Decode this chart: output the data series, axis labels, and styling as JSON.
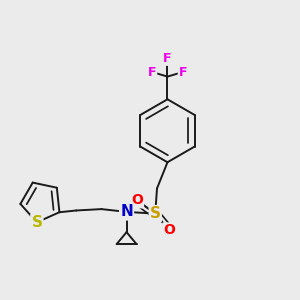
{
  "background_color": "#ebebeb",
  "bond_color": "#1a1a1a",
  "atom_colors": {
    "S_thiophene": "#b8b800",
    "S_sulfonyl": "#c8a000",
    "N": "#0000cc",
    "O": "#ff0000",
    "F": "#ee00ee",
    "C": "#1a1a1a"
  },
  "bond_lw": 1.4,
  "fig_size": [
    3.0,
    3.0
  ],
  "dpi": 100
}
